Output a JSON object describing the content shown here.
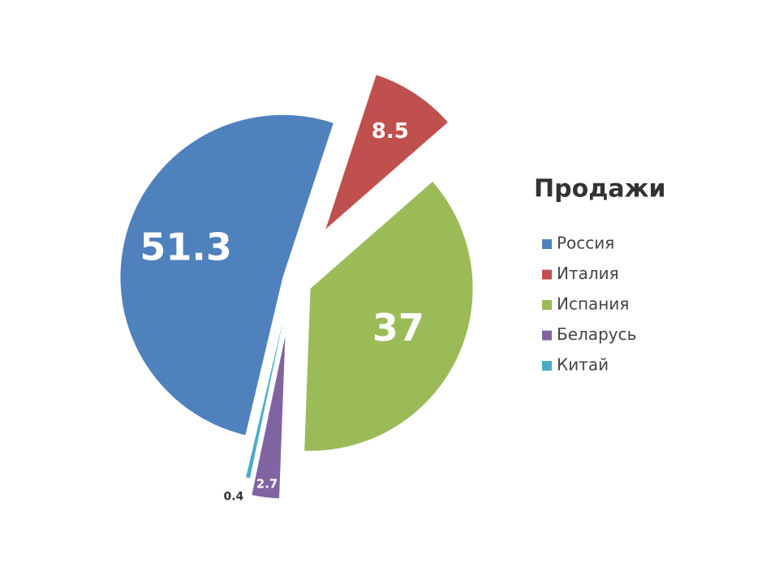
{
  "chart_data": {
    "type": "pie",
    "title": "Продажи",
    "categories": [
      "Россия",
      "Италия",
      "Испания",
      "Беларусь",
      "Китай"
    ],
    "values": [
      51.3,
      8.5,
      37,
      2.7,
      0.4
    ],
    "colors": [
      "#4f81bd",
      "#c0504d",
      "#9bbb59",
      "#8064a2",
      "#4bacc6"
    ],
    "legend": "right"
  }
}
